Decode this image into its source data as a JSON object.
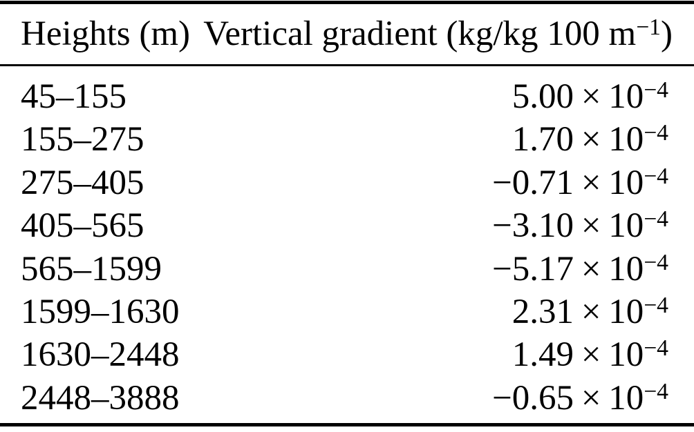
{
  "colors": {
    "background": "#ffffff",
    "text": "#000000",
    "rule": "#000000"
  },
  "table": {
    "header": {
      "heights_label": "Heights (m)",
      "gradient_label_prefix": "Vertical gradient (kg/kg 100 m",
      "gradient_label_exponent": "−1",
      "gradient_label_suffix": ")"
    },
    "rows": [
      {
        "heights": "45–155",
        "mantissa": "5.00",
        "times": "×",
        "base": "10",
        "exponent": "−4"
      },
      {
        "heights": "155–275",
        "mantissa": "1.70",
        "times": "×",
        "base": "10",
        "exponent": "−4"
      },
      {
        "heights": "275–405",
        "mantissa": "−0.71",
        "times": "×",
        "base": "10",
        "exponent": "−4"
      },
      {
        "heights": "405–565",
        "mantissa": "−3.10",
        "times": "×",
        "base": "10",
        "exponent": "−4"
      },
      {
        "heights": "565–1599",
        "mantissa": "−5.17",
        "times": "×",
        "base": "10",
        "exponent": "−4"
      },
      {
        "heights": "1599–1630",
        "mantissa": "2.31",
        "times": "×",
        "base": "10",
        "exponent": "−4"
      },
      {
        "heights": "1630–2448",
        "mantissa": "1.49",
        "times": "×",
        "base": "10",
        "exponent": "−4"
      },
      {
        "heights": "2448–3888",
        "mantissa": "−0.65",
        "times": "×",
        "base": "10",
        "exponent": "−4"
      }
    ]
  }
}
